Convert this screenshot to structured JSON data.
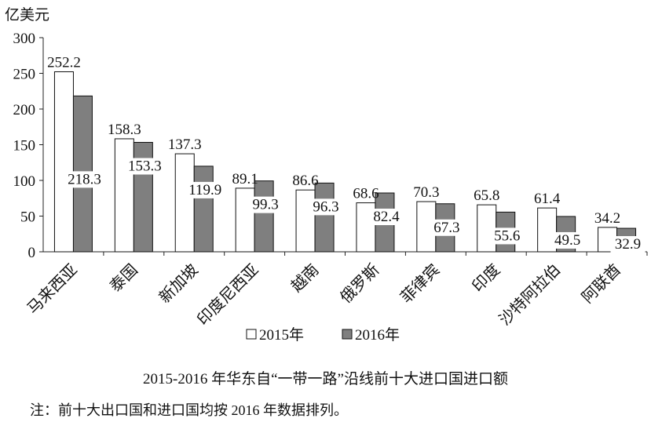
{
  "chart_data": {
    "type": "bar",
    "unit_label": "亿美元",
    "categories": [
      "马来西亚",
      "泰国",
      "新加坡",
      "印度尼西亚",
      "越南",
      "俄罗斯",
      "菲律宾",
      "印度",
      "沙特阿拉伯",
      "阿联酋"
    ],
    "series": [
      {
        "name": "2015年",
        "values": [
          252.2,
          158.3,
          137.3,
          89.1,
          86.6,
          68.6,
          70.3,
          65.8,
          61.4,
          34.2
        ],
        "color": "#ffffff"
      },
      {
        "name": "2016年",
        "values": [
          218.3,
          153.3,
          119.9,
          99.3,
          96.3,
          82.4,
          67.3,
          55.6,
          49.5,
          32.9
        ],
        "color": "#7f7f7f"
      }
    ],
    "ylim": [
      0,
      300
    ],
    "yticks": [
      0,
      50,
      100,
      150,
      200,
      250,
      300
    ],
    "grid": false,
    "legend_position": "bottom",
    "title": "2015-2016 年华东自“一带一路”沿线前十大进口国进口额",
    "note": "注：前十大出口国和进口国均按 2016 年数据排列。"
  }
}
